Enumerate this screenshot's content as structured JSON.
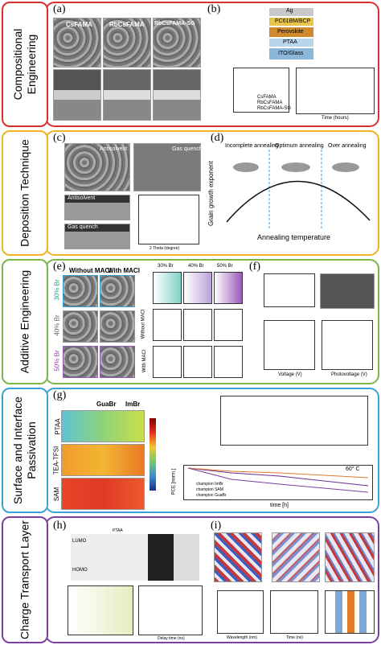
{
  "rows": [
    {
      "label": "Compositional Engineering",
      "panels": [
        {
          "letter": "(a)",
          "texts": [
            "CsFAMA",
            "RbCsFAMA",
            "RbCsFAMA-SG"
          ]
        },
        {
          "letter": "(b)",
          "texts": [
            "Ag",
            "PC61BM/BCP",
            "Perovskite",
            "PTAA",
            "ITO/Glass",
            "CsFAMA",
            "RbCsFAMA",
            "RbCsFAMA-SG",
            "Time (hours)"
          ]
        }
      ]
    },
    {
      "label": "Deposition Technique",
      "panels": [
        {
          "letter": "(c)",
          "texts": [
            "Antisolvent",
            "Gas quench",
            "Antisolvent",
            "Gas quench",
            "2 Theta (degree)"
          ]
        },
        {
          "letter": "(d)",
          "texts": [
            "Incomplete annealing",
            "Optimum annealing",
            "Over annealing",
            "Grain growth exponent",
            "Annealing temperature"
          ]
        }
      ]
    },
    {
      "label": "Additive Engineering",
      "panels": [
        {
          "letter": "(e)",
          "texts": [
            "Without MACl",
            "With MACl",
            "30% Br",
            "40% Br",
            "50% Br",
            "30% Br",
            "40% Br",
            "50% Br",
            "Without MACl",
            "With MACl"
          ]
        },
        {
          "letter": "(f)",
          "texts": [
            "Voltage (V)",
            "Photovoltage (V)"
          ]
        }
      ]
    },
    {
      "label": "Surface and Interface Passivation",
      "panels": [
        {
          "letter": "(g)",
          "texts": [
            "GuaBr",
            "ImBr",
            "PTAA",
            "TEA-TFSI",
            "SAM",
            "60° C",
            "time [h]",
            "PCE [norm.]",
            "champion ImBr",
            "champion SAM",
            "champion GuaBr"
          ]
        }
      ]
    },
    {
      "label": "Charge Transport Layer",
      "panels": [
        {
          "letter": "(h)",
          "texts": [
            "LUMO",
            "HOMO",
            "PTAA",
            "Delay time (ns)"
          ]
        },
        {
          "letter": "(i)",
          "texts": [
            "Wavelength (nm)",
            "Time (ns)"
          ]
        }
      ]
    }
  ]
}
